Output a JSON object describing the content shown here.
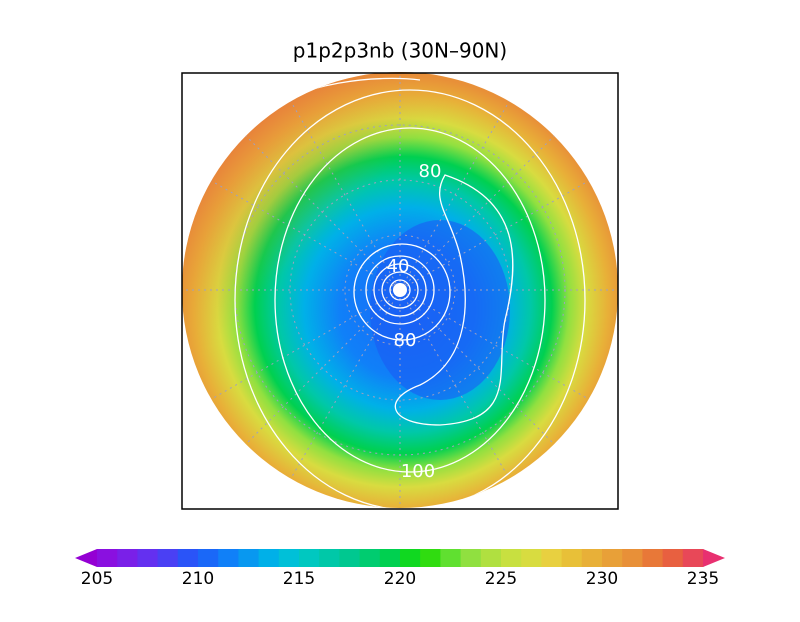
{
  "title": "p1p2p3nb (30N–90N)",
  "contour_labels": [
    "80",
    "40",
    "80",
    "100"
  ],
  "colorbar": {
    "ticks": [
      205,
      210,
      215,
      220,
      225,
      230,
      235
    ],
    "colors": [
      "#9400d3",
      "#8a10e0",
      "#7a20e8",
      "#6430f0",
      "#4a40f4",
      "#2a54f8",
      "#1a68f8",
      "#1080f8",
      "#0898f0",
      "#00b0e8",
      "#00c0d8",
      "#00c8c0",
      "#00c8a8",
      "#00c890",
      "#00cc70",
      "#00d050",
      "#10d820",
      "#30dc10",
      "#60e030",
      "#90e040",
      "#b0e040",
      "#c8e040",
      "#d8dc40",
      "#e8d040",
      "#e8c038",
      "#e8b038",
      "#e8a038",
      "#e89038",
      "#e87838",
      "#e86040",
      "#e84858",
      "#e83070"
    ]
  }
}
